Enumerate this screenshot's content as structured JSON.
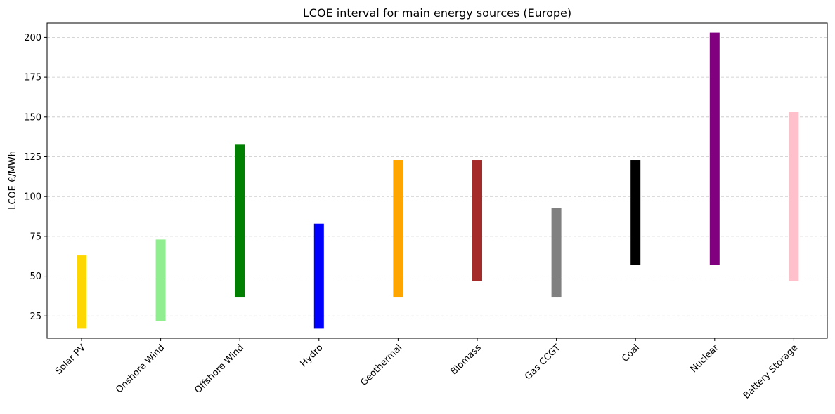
{
  "chart_data": {
    "type": "bar",
    "title": "LCOE interval for main energy sources (Europe)",
    "xlabel": "",
    "ylabel": "LCOE €/MWh",
    "ylim": [
      11,
      209
    ],
    "yticks": [
      25,
      50,
      75,
      100,
      125,
      150,
      175,
      200
    ],
    "grid": "y-dashed",
    "categories": [
      "Solar PV",
      "Onshore Wind",
      "Offshore Wind",
      "Hydro",
      "Geothermal",
      "Biomass",
      "Gas CCGT",
      "Coal",
      "Nuclear",
      "Battery Storage"
    ],
    "ranges": [
      {
        "name": "Solar PV",
        "low": 17,
        "high": 63,
        "color": "#FFD700"
      },
      {
        "name": "Onshore Wind",
        "low": 22,
        "high": 73,
        "color": "#90EE90"
      },
      {
        "name": "Offshore Wind",
        "low": 37,
        "high": 133,
        "color": "#008000"
      },
      {
        "name": "Hydro",
        "low": 17,
        "high": 83,
        "color": "#0000FF"
      },
      {
        "name": "Geothermal",
        "low": 37,
        "high": 123,
        "color": "#FFA500"
      },
      {
        "name": "Biomass",
        "low": 47,
        "high": 123,
        "color": "#A52A2A"
      },
      {
        "name": "Gas CCGT",
        "low": 37,
        "high": 93,
        "color": "#808080"
      },
      {
        "name": "Coal",
        "low": 57,
        "high": 123,
        "color": "#000000"
      },
      {
        "name": "Nuclear",
        "low": 57,
        "high": 203,
        "color": "#800080"
      },
      {
        "name": "Battery Storage",
        "low": 47,
        "high": 153,
        "color": "#FFC0CB"
      }
    ]
  }
}
